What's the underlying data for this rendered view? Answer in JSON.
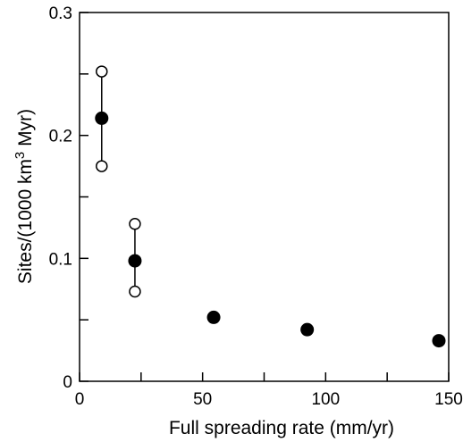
{
  "chart_data": {
    "type": "scatter",
    "xlabel": "Full spreading rate (mm/yr)",
    "ylabel_parts": [
      "Sites/(1000 km",
      "3",
      " Myr)"
    ],
    "xlim": [
      0,
      150
    ],
    "ylim": [
      0,
      0.3
    ],
    "xticks": [
      0,
      50,
      100,
      150
    ],
    "xtick_labels": [
      "0",
      "50",
      "100",
      "150"
    ],
    "yticks": [
      0,
      0.1,
      0.2,
      0.3
    ],
    "ytick_labels": [
      "0",
      "0.1",
      "0.2",
      "0.3"
    ],
    "minor_xticks": [
      25,
      75,
      125
    ],
    "minor_yticks": [
      0.05,
      0.15,
      0.25
    ],
    "grid": false,
    "series": [
      {
        "marker": "filled-circle",
        "points": [
          {
            "x": 9,
            "y": 0.214
          },
          {
            "x": 22.5,
            "y": 0.098
          },
          {
            "x": 54.5,
            "y": 0.052
          },
          {
            "x": 92.5,
            "y": 0.042
          },
          {
            "x": 146,
            "y": 0.033
          }
        ]
      },
      {
        "marker": "open-circle",
        "points": [
          {
            "x": 9,
            "y": 0.252
          },
          {
            "x": 9,
            "y": 0.175
          },
          {
            "x": 22.5,
            "y": 0.128
          },
          {
            "x": 22.5,
            "y": 0.073
          }
        ]
      }
    ],
    "ranges": [
      {
        "x": 9,
        "low": 0.175,
        "high": 0.252
      },
      {
        "x": 22.5,
        "low": 0.073,
        "high": 0.128
      }
    ]
  }
}
